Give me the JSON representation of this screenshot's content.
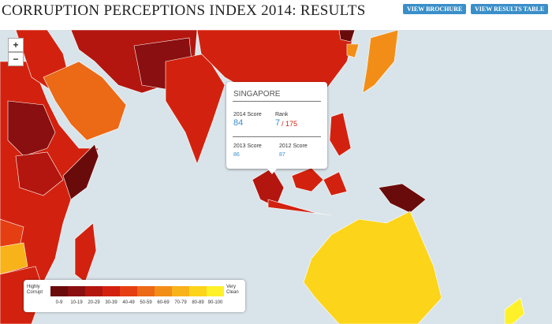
{
  "header": {
    "title": "CORRUPTION PERCEPTIONS INDEX 2014: RESULTS",
    "buttons": [
      "VIEW BROCHURE",
      "VIEW RESULTS TABLE"
    ]
  },
  "zoom": [
    "+",
    "−"
  ],
  "popup": {
    "country": "SINGAPORE",
    "score_2014_label": "2014 Score",
    "score_2014": 84,
    "rank_label": "Rank",
    "rank": 7,
    "rank_total": "/ 175",
    "score_2013_label": "2013 Score",
    "score_2013": 86,
    "score_2012_label": "2012 Score",
    "score_2012": 87
  },
  "legend": {
    "low_label": "Highly Corrupt",
    "high_label": "Very Clean",
    "ranges": [
      {
        "label": "0-9",
        "color": "#6a0b0b"
      },
      {
        "label": "10-19",
        "color": "#8a0f10"
      },
      {
        "label": "20-29",
        "color": "#b3160f"
      },
      {
        "label": "30-39",
        "color": "#d2220f"
      },
      {
        "label": "40-49",
        "color": "#e53e12"
      },
      {
        "label": "50-59",
        "color": "#ec6915"
      },
      {
        "label": "60-69",
        "color": "#f28e17"
      },
      {
        "label": "70-79",
        "color": "#f8b21a"
      },
      {
        "label": "80-89",
        "color": "#fcd41a"
      },
      {
        "label": "90-100",
        "color": "#fef12a"
      }
    ]
  }
}
